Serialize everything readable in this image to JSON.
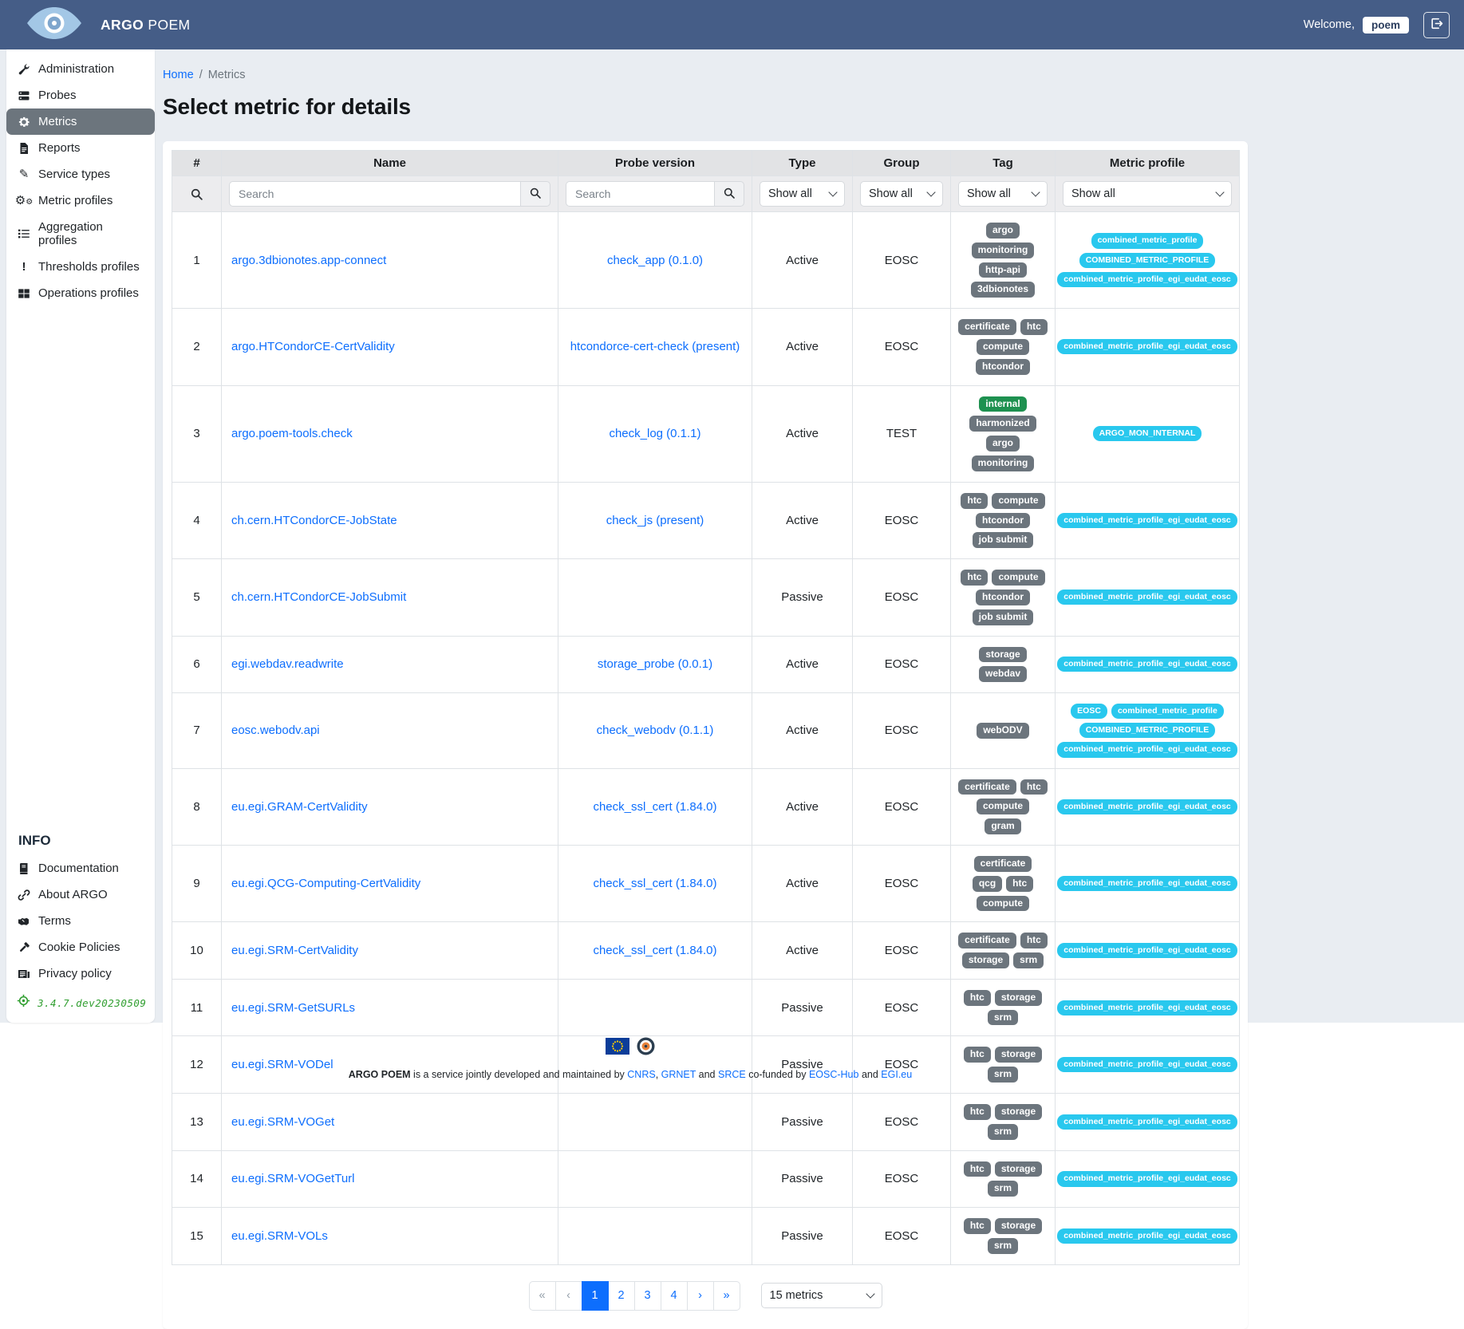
{
  "colors": {
    "header_bg": "#455d87",
    "accent_blue": "#0d6efd",
    "active_item_gray": "#6c757d",
    "tag_gray": "#6c757d",
    "tag_green": "#1e9150",
    "profile_cyan": "#29c8ee",
    "version_green": "#2f9e2f",
    "page_bg": "#e9edf2"
  },
  "header": {
    "brand_bold": "ARGO",
    "brand_light": "POEM",
    "welcome_text": "Welcome,",
    "username": "poem",
    "logout_icon": "box-arrow-right-icon",
    "logo_icon": "argo-eye-icon"
  },
  "sidebar": {
    "items": [
      {
        "label": "Administration",
        "icon": "wrench",
        "active": false
      },
      {
        "label": "Probes",
        "icon": "server",
        "active": false
      },
      {
        "label": "Metrics",
        "icon": "gear",
        "active": true
      },
      {
        "label": "Reports",
        "icon": "file",
        "active": false
      },
      {
        "label": "Service types",
        "icon": "pen",
        "active": false
      },
      {
        "label": "Metric profiles",
        "icon": "gears",
        "active": false
      },
      {
        "label": "Aggregation profiles",
        "icon": "listcheck",
        "active": false
      },
      {
        "label": "Thresholds profiles",
        "icon": "excl",
        "active": false
      },
      {
        "label": "Operations profiles",
        "icon": "tablegrid",
        "active": false
      }
    ],
    "info_heading": "INFO",
    "info_items": [
      {
        "label": "Documentation",
        "icon": "book"
      },
      {
        "label": "About ARGO",
        "icon": "link"
      },
      {
        "label": "Terms",
        "icon": "handshake"
      },
      {
        "label": "Cookie Policies",
        "icon": "gavel"
      },
      {
        "label": "Privacy policy",
        "icon": "newspaper"
      }
    ],
    "version": "3.4.7.dev20230509",
    "version_icon": "target-icon"
  },
  "breadcrumb": {
    "home": "Home",
    "separator": "/",
    "current": "Metrics"
  },
  "page_title": "Select metric for details",
  "table": {
    "columns": [
      "#",
      "Name",
      "Probe version",
      "Type",
      "Group",
      "Tag",
      "Metric profile"
    ],
    "filters": {
      "search_placeholder": "Search",
      "show_all": "Show all"
    },
    "rows": [
      {
        "num": "1",
        "name": "argo.3dbionotes.app-connect",
        "probe": "check_app (0.1.0)",
        "type": "Active",
        "group": "EOSC",
        "tags": [
          {
            "label": "argo",
            "color": "gray"
          },
          {
            "label": "monitoring",
            "color": "gray"
          },
          {
            "label": "http-api",
            "color": "gray"
          },
          {
            "label": "3dbionotes",
            "color": "gray"
          }
        ],
        "profiles": [
          "combined_metric_profile",
          "COMBINED_METRIC_PROFILE",
          "combined_metric_profile_egi_eudat_eosc"
        ]
      },
      {
        "num": "2",
        "name": "argo.HTCondorCE-CertValidity",
        "probe": "htcondorce-cert-check (present)",
        "type": "Active",
        "group": "EOSC",
        "tags": [
          {
            "label": "certificate",
            "color": "gray"
          },
          {
            "label": "htc",
            "color": "gray"
          },
          {
            "label": "compute",
            "color": "gray"
          },
          {
            "label": "htcondor",
            "color": "gray"
          }
        ],
        "profiles": [
          "combined_metric_profile_egi_eudat_eosc"
        ]
      },
      {
        "num": "3",
        "name": "argo.poem-tools.check",
        "probe": "check_log (0.1.1)",
        "type": "Active",
        "group": "TEST",
        "tags": [
          {
            "label": "internal",
            "color": "green"
          },
          {
            "label": "harmonized",
            "color": "gray"
          },
          {
            "label": "argo",
            "color": "gray"
          },
          {
            "label": "monitoring",
            "color": "gray"
          }
        ],
        "profiles": [
          "ARGO_MON_INTERNAL"
        ]
      },
      {
        "num": "4",
        "name": "ch.cern.HTCondorCE-JobState",
        "probe": "check_js (present)",
        "type": "Active",
        "group": "EOSC",
        "tags": [
          {
            "label": "htc",
            "color": "gray"
          },
          {
            "label": "compute",
            "color": "gray"
          },
          {
            "label": "htcondor",
            "color": "gray"
          },
          {
            "label": "job submit",
            "color": "gray"
          }
        ],
        "profiles": [
          "combined_metric_profile_egi_eudat_eosc"
        ]
      },
      {
        "num": "5",
        "name": "ch.cern.HTCondorCE-JobSubmit",
        "probe": "",
        "type": "Passive",
        "group": "EOSC",
        "tags": [
          {
            "label": "htc",
            "color": "gray"
          },
          {
            "label": "compute",
            "color": "gray"
          },
          {
            "label": "htcondor",
            "color": "gray"
          },
          {
            "label": "job submit",
            "color": "gray"
          }
        ],
        "profiles": [
          "combined_metric_profile_egi_eudat_eosc"
        ]
      },
      {
        "num": "6",
        "name": "egi.webdav.readwrite",
        "probe": "storage_probe (0.0.1)",
        "type": "Active",
        "group": "EOSC",
        "tags": [
          {
            "label": "storage",
            "color": "gray"
          },
          {
            "label": "webdav",
            "color": "gray"
          }
        ],
        "profiles": [
          "combined_metric_profile_egi_eudat_eosc"
        ]
      },
      {
        "num": "7",
        "name": "eosc.webodv.api",
        "probe": "check_webodv (0.1.1)",
        "type": "Active",
        "group": "EOSC",
        "tags": [
          {
            "label": "webODV",
            "color": "gray"
          }
        ],
        "profiles": [
          "EOSC",
          "combined_metric_profile",
          "COMBINED_METRIC_PROFILE",
          "combined_metric_profile_egi_eudat_eosc"
        ]
      },
      {
        "num": "8",
        "name": "eu.egi.GRAM-CertValidity",
        "probe": "check_ssl_cert (1.84.0)",
        "type": "Active",
        "group": "EOSC",
        "tags": [
          {
            "label": "certificate",
            "color": "gray"
          },
          {
            "label": "htc",
            "color": "gray"
          },
          {
            "label": "compute",
            "color": "gray"
          },
          {
            "label": "gram",
            "color": "gray"
          }
        ],
        "profiles": [
          "combined_metric_profile_egi_eudat_eosc"
        ]
      },
      {
        "num": "9",
        "name": "eu.egi.QCG-Computing-CertValidity",
        "probe": "check_ssl_cert (1.84.0)",
        "type": "Active",
        "group": "EOSC",
        "tags": [
          {
            "label": "certificate",
            "color": "gray"
          },
          {
            "label": "qcg",
            "color": "gray"
          },
          {
            "label": "htc",
            "color": "gray"
          },
          {
            "label": "compute",
            "color": "gray"
          }
        ],
        "profiles": [
          "combined_metric_profile_egi_eudat_eosc"
        ]
      },
      {
        "num": "10",
        "name": "eu.egi.SRM-CertValidity",
        "probe": "check_ssl_cert (1.84.0)",
        "type": "Active",
        "group": "EOSC",
        "tags": [
          {
            "label": "certificate",
            "color": "gray"
          },
          {
            "label": "htc",
            "color": "gray"
          },
          {
            "label": "storage",
            "color": "gray"
          },
          {
            "label": "srm",
            "color": "gray"
          }
        ],
        "profiles": [
          "combined_metric_profile_egi_eudat_eosc"
        ]
      },
      {
        "num": "11",
        "name": "eu.egi.SRM-GetSURLs",
        "probe": "",
        "type": "Passive",
        "group": "EOSC",
        "tags": [
          {
            "label": "htc",
            "color": "gray"
          },
          {
            "label": "storage",
            "color": "gray"
          },
          {
            "label": "srm",
            "color": "gray"
          }
        ],
        "profiles": [
          "combined_metric_profile_egi_eudat_eosc"
        ]
      },
      {
        "num": "12",
        "name": "eu.egi.SRM-VODel",
        "probe": "",
        "type": "Passive",
        "group": "EOSC",
        "tags": [
          {
            "label": "htc",
            "color": "gray"
          },
          {
            "label": "storage",
            "color": "gray"
          },
          {
            "label": "srm",
            "color": "gray"
          }
        ],
        "profiles": [
          "combined_metric_profile_egi_eudat_eosc"
        ]
      },
      {
        "num": "13",
        "name": "eu.egi.SRM-VOGet",
        "probe": "",
        "type": "Passive",
        "group": "EOSC",
        "tags": [
          {
            "label": "htc",
            "color": "gray"
          },
          {
            "label": "storage",
            "color": "gray"
          },
          {
            "label": "srm",
            "color": "gray"
          }
        ],
        "profiles": [
          "combined_metric_profile_egi_eudat_eosc"
        ]
      },
      {
        "num": "14",
        "name": "eu.egi.SRM-VOGetTurl",
        "probe": "",
        "type": "Passive",
        "group": "EOSC",
        "tags": [
          {
            "label": "htc",
            "color": "gray"
          },
          {
            "label": "storage",
            "color": "gray"
          },
          {
            "label": "srm",
            "color": "gray"
          }
        ],
        "profiles": [
          "combined_metric_profile_egi_eudat_eosc"
        ]
      },
      {
        "num": "15",
        "name": "eu.egi.SRM-VOLs",
        "probe": "",
        "type": "Passive",
        "group": "EOSC",
        "tags": [
          {
            "label": "htc",
            "color": "gray"
          },
          {
            "label": "storage",
            "color": "gray"
          },
          {
            "label": "srm",
            "color": "gray"
          }
        ],
        "profiles": [
          "combined_metric_profile_egi_eudat_eosc"
        ]
      }
    ]
  },
  "pagination": {
    "items": [
      {
        "label": "«",
        "state": "disabled"
      },
      {
        "label": "‹",
        "state": "disabled"
      },
      {
        "label": "1",
        "state": "active"
      },
      {
        "label": "2",
        "state": "normal"
      },
      {
        "label": "3",
        "state": "normal"
      },
      {
        "label": "4",
        "state": "normal"
      },
      {
        "label": "›",
        "state": "normal"
      },
      {
        "label": "»",
        "state": "normal"
      }
    ],
    "page_size_label": "15 metrics"
  },
  "footer": {
    "logos": [
      "eu-flag-icon",
      "argo-roundel-icon"
    ],
    "parts": [
      {
        "text": "ARGO POEM",
        "style": "bold"
      },
      {
        "text": " is a service jointly developed and maintained by ",
        "style": "plain"
      },
      {
        "text": "CNRS",
        "style": "link"
      },
      {
        "text": ", ",
        "style": "plain"
      },
      {
        "text": "GRNET",
        "style": "link"
      },
      {
        "text": " and ",
        "style": "plain"
      },
      {
        "text": "SRCE",
        "style": "link"
      },
      {
        "text": "  co-funded by ",
        "style": "plain"
      },
      {
        "text": "EOSC-Hub",
        "style": "link"
      },
      {
        "text": " and ",
        "style": "plain"
      },
      {
        "text": "EGI.eu",
        "style": "link"
      }
    ]
  }
}
